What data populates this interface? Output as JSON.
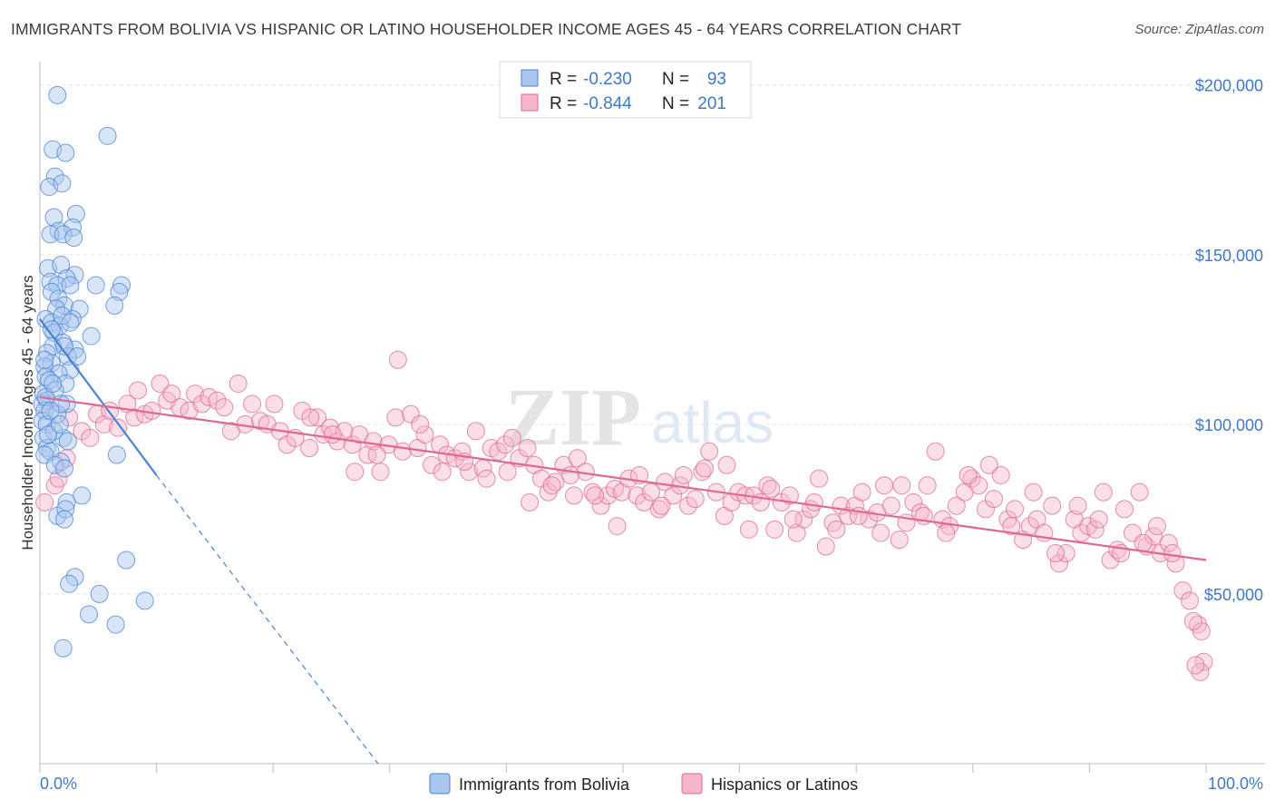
{
  "title": "IMMIGRANTS FROM BOLIVIA VS HISPANIC OR LATINO HOUSEHOLDER INCOME AGES 45 - 64 YEARS CORRELATION CHART",
  "source": "Source: ZipAtlas.com",
  "watermark": {
    "part1": "ZIP",
    "part2": "atlas"
  },
  "colors": {
    "blue": "#4a82d4",
    "blue_fill": "#a9c6ee",
    "pink": "#e0688f",
    "pink_fill": "#f5b6cb",
    "value_text": "#3f78c9"
  },
  "legend": {
    "rows": [
      {
        "r_label": "R =",
        "r_value": "-0.230",
        "n_label": "N =",
        "n_value": "93"
      },
      {
        "r_label": "R =",
        "r_value": "-0.844",
        "n_label": "N =",
        "n_value": "201"
      }
    ]
  },
  "bottom_legend": [
    "Immigrants from Bolivia",
    "Hispanics or Latinos"
  ],
  "chart_data": {
    "type": "scatter",
    "ylabel": "Householder Income Ages 45 - 64 years",
    "xlabel": "",
    "x_tick_labels": [
      "0.0%",
      "100.0%"
    ],
    "y_tick_labels": [
      "$50,000",
      "$100,000",
      "$150,000",
      "$200,000"
    ],
    "y_ticks": [
      50000,
      100000,
      150000,
      200000
    ],
    "xlim": [
      0,
      100
    ],
    "ylim": [
      0,
      205000
    ],
    "grid": true,
    "series": [
      {
        "name": "Immigrants from Bolivia",
        "color": "#4a82d4",
        "trend": {
          "x0": 0,
          "y0": 131000,
          "x1": 10,
          "y1": 85000,
          "dashed_to_x": 29,
          "dashed_to_y": 0
        },
        "points": [
          [
            1.5,
            197000
          ],
          [
            5.8,
            185000
          ],
          [
            1.1,
            181000
          ],
          [
            2.2,
            180000
          ],
          [
            1.3,
            173000
          ],
          [
            0.8,
            170000
          ],
          [
            1.9,
            171000
          ],
          [
            3.1,
            162000
          ],
          [
            1.2,
            161000
          ],
          [
            1.6,
            157000
          ],
          [
            2.8,
            158000
          ],
          [
            0.9,
            156000
          ],
          [
            2.0,
            156000
          ],
          [
            2.9,
            155000
          ],
          [
            0.7,
            146000
          ],
          [
            1.8,
            147000
          ],
          [
            3.0,
            144000
          ],
          [
            0.9,
            142000
          ],
          [
            2.3,
            143000
          ],
          [
            1.5,
            141000
          ],
          [
            2.6,
            141000
          ],
          [
            4.8,
            141000
          ],
          [
            7.0,
            141000
          ],
          [
            1.0,
            139000
          ],
          [
            1.6,
            137000
          ],
          [
            6.8,
            139000
          ],
          [
            2.1,
            135000
          ],
          [
            1.4,
            134000
          ],
          [
            3.4,
            134000
          ],
          [
            6.4,
            135000
          ],
          [
            0.5,
            131000
          ],
          [
            2.8,
            131000
          ],
          [
            1.0,
            130000
          ],
          [
            1.7,
            129000
          ],
          [
            1.2,
            127000
          ],
          [
            4.4,
            126000
          ],
          [
            2.0,
            124000
          ],
          [
            1.1,
            123000
          ],
          [
            3.0,
            122000
          ],
          [
            0.6,
            121000
          ],
          [
            2.4,
            120000
          ],
          [
            1.0,
            118000
          ],
          [
            0.4,
            117000
          ],
          [
            2.6,
            116000
          ],
          [
            1.6,
            115000
          ],
          [
            0.5,
            114000
          ],
          [
            0.8,
            113000
          ],
          [
            2.2,
            112000
          ],
          [
            0.3,
            109000
          ],
          [
            0.6,
            107000
          ],
          [
            0.2,
            106000
          ],
          [
            2.3,
            106000
          ],
          [
            0.4,
            104000
          ],
          [
            1.5,
            103000
          ],
          [
            0.2,
            101000
          ],
          [
            0.6,
            100000
          ],
          [
            0.3,
            96000
          ],
          [
            2.0,
            96000
          ],
          [
            0.6,
            93000
          ],
          [
            0.9,
            92000
          ],
          [
            0.4,
            91000
          ],
          [
            6.6,
            91000
          ],
          [
            1.8,
            89000
          ],
          [
            1.3,
            88000
          ],
          [
            2.1,
            87000
          ],
          [
            3.6,
            79000
          ],
          [
            2.3,
            77000
          ],
          [
            1.5,
            73000
          ],
          [
            2.2,
            75000
          ],
          [
            2.1,
            72000
          ],
          [
            7.4,
            60000
          ],
          [
            3.0,
            55000
          ],
          [
            2.5,
            53000
          ],
          [
            5.1,
            50000
          ],
          [
            9.0,
            48000
          ],
          [
            4.2,
            44000
          ],
          [
            6.5,
            41000
          ],
          [
            2.0,
            34000
          ],
          [
            2.1,
            123000
          ],
          [
            1.3,
            110000
          ],
          [
            0.5,
            108000
          ],
          [
            1.2,
            98000
          ],
          [
            0.7,
            97000
          ],
          [
            1.9,
            132000
          ],
          [
            1.0,
            128000
          ],
          [
            2.6,
            130000
          ],
          [
            0.4,
            119000
          ],
          [
            1.7,
            100000
          ],
          [
            3.2,
            120000
          ],
          [
            2.4,
            95000
          ],
          [
            1.1,
            112000
          ],
          [
            1.8,
            106000
          ],
          [
            0.9,
            104000
          ]
        ]
      },
      {
        "name": "Hispanics or Latinos",
        "color": "#e0688f",
        "trend": {
          "x0": 0,
          "y0": 108000,
          "x1": 100,
          "y1": 60000
        },
        "points": [
          [
            0.4,
            77000
          ],
          [
            1.3,
            82000
          ],
          [
            1.6,
            84000
          ],
          [
            2.3,
            90000
          ],
          [
            2.5,
            102000
          ],
          [
            3.6,
            98000
          ],
          [
            4.3,
            96000
          ],
          [
            4.9,
            103000
          ],
          [
            5.5,
            100000
          ],
          [
            6.0,
            104000
          ],
          [
            6.7,
            99000
          ],
          [
            7.5,
            106000
          ],
          [
            8.1,
            102000
          ],
          [
            8.4,
            110000
          ],
          [
            9.0,
            103000
          ],
          [
            9.6,
            104000
          ],
          [
            10.3,
            112000
          ],
          [
            10.9,
            107000
          ],
          [
            11.3,
            109000
          ],
          [
            12.0,
            105000
          ],
          [
            12.8,
            104000
          ],
          [
            13.3,
            109000
          ],
          [
            13.9,
            106000
          ],
          [
            14.5,
            108000
          ],
          [
            15.2,
            107000
          ],
          [
            15.8,
            105000
          ],
          [
            16.4,
            98000
          ],
          [
            17.0,
            112000
          ],
          [
            17.6,
            100000
          ],
          [
            18.2,
            106000
          ],
          [
            18.9,
            101000
          ],
          [
            19.5,
            100000
          ],
          [
            20.1,
            106000
          ],
          [
            20.6,
            98000
          ],
          [
            21.2,
            94000
          ],
          [
            21.9,
            96000
          ],
          [
            22.5,
            104000
          ],
          [
            23.1,
            93000
          ],
          [
            23.8,
            102000
          ],
          [
            24.3,
            97000
          ],
          [
            24.9,
            99000
          ],
          [
            25.5,
            95000
          ],
          [
            26.1,
            98000
          ],
          [
            26.8,
            94000
          ],
          [
            27.4,
            97000
          ],
          [
            28.1,
            91000
          ],
          [
            28.6,
            95000
          ],
          [
            29.2,
            86000
          ],
          [
            29.9,
            94000
          ],
          [
            30.5,
            102000
          ],
          [
            31.1,
            92000
          ],
          [
            31.8,
            103000
          ],
          [
            32.4,
            93000
          ],
          [
            33.0,
            97000
          ],
          [
            33.6,
            88000
          ],
          [
            34.3,
            94000
          ],
          [
            34.9,
            91000
          ],
          [
            35.6,
            90000
          ],
          [
            36.2,
            92000
          ],
          [
            36.8,
            86000
          ],
          [
            37.4,
            98000
          ],
          [
            38.0,
            87000
          ],
          [
            38.7,
            93000
          ],
          [
            39.3,
            92000
          ],
          [
            39.9,
            94000
          ],
          [
            40.5,
            96000
          ],
          [
            41.1,
            90000
          ],
          [
            41.8,
            93000
          ],
          [
            42.4,
            88000
          ],
          [
            43.0,
            84000
          ],
          [
            43.6,
            80000
          ],
          [
            44.2,
            83000
          ],
          [
            44.9,
            88000
          ],
          [
            45.5,
            85000
          ],
          [
            46.1,
            90000
          ],
          [
            46.8,
            86000
          ],
          [
            47.4,
            80000
          ],
          [
            48.1,
            76000
          ],
          [
            48.7,
            79000
          ],
          [
            49.3,
            81000
          ],
          [
            49.9,
            80000
          ],
          [
            50.5,
            84000
          ],
          [
            51.2,
            79000
          ],
          [
            51.8,
            77000
          ],
          [
            52.4,
            80000
          ],
          [
            53.1,
            75000
          ],
          [
            53.6,
            83000
          ],
          [
            54.3,
            79000
          ],
          [
            54.9,
            82000
          ],
          [
            55.6,
            76000
          ],
          [
            56.2,
            78000
          ],
          [
            56.8,
            86000
          ],
          [
            57.4,
            92000
          ],
          [
            58.0,
            80000
          ],
          [
            58.7,
            73000
          ],
          [
            59.3,
            77000
          ],
          [
            59.9,
            80000
          ],
          [
            60.5,
            79000
          ],
          [
            61.2,
            79000
          ],
          [
            61.8,
            77000
          ],
          [
            62.4,
            82000
          ],
          [
            63.0,
            69000
          ],
          [
            63.6,
            77000
          ],
          [
            64.3,
            79000
          ],
          [
            64.9,
            68000
          ],
          [
            65.5,
            72000
          ],
          [
            66.1,
            75000
          ],
          [
            66.8,
            84000
          ],
          [
            67.4,
            64000
          ],
          [
            68.0,
            71000
          ],
          [
            68.7,
            76000
          ],
          [
            69.3,
            73000
          ],
          [
            69.9,
            76000
          ],
          [
            70.5,
            80000
          ],
          [
            71.1,
            72000
          ],
          [
            71.8,
            74000
          ],
          [
            72.4,
            82000
          ],
          [
            73.0,
            76000
          ],
          [
            73.7,
            66000
          ],
          [
            74.3,
            71000
          ],
          [
            74.9,
            77000
          ],
          [
            75.5,
            74000
          ],
          [
            76.1,
            82000
          ],
          [
            76.8,
            92000
          ],
          [
            77.4,
            72000
          ],
          [
            78.0,
            70000
          ],
          [
            78.6,
            76000
          ],
          [
            79.3,
            80000
          ],
          [
            79.9,
            84000
          ],
          [
            80.5,
            82000
          ],
          [
            81.1,
            75000
          ],
          [
            81.8,
            78000
          ],
          [
            82.4,
            85000
          ],
          [
            83.0,
            72000
          ],
          [
            83.6,
            75000
          ],
          [
            84.3,
            66000
          ],
          [
            84.9,
            70000
          ],
          [
            85.5,
            72000
          ],
          [
            86.1,
            68000
          ],
          [
            86.8,
            76000
          ],
          [
            87.4,
            59000
          ],
          [
            88.0,
            62000
          ],
          [
            88.7,
            72000
          ],
          [
            89.3,
            68000
          ],
          [
            89.9,
            70000
          ],
          [
            90.5,
            69000
          ],
          [
            91.2,
            80000
          ],
          [
            91.8,
            60000
          ],
          [
            92.4,
            63000
          ],
          [
            93.0,
            75000
          ],
          [
            93.7,
            68000
          ],
          [
            94.3,
            80000
          ],
          [
            94.9,
            64000
          ],
          [
            95.5,
            67000
          ],
          [
            96.1,
            62000
          ],
          [
            96.8,
            65000
          ],
          [
            97.4,
            59000
          ],
          [
            98.0,
            51000
          ],
          [
            98.6,
            48000
          ],
          [
            99.3,
            41000
          ],
          [
            99.6,
            39000
          ],
          [
            98.9,
            42000
          ],
          [
            99.8,
            30000
          ],
          [
            99.5,
            27000
          ],
          [
            99.1,
            29000
          ],
          [
            97.1,
            62000
          ],
          [
            95.8,
            70000
          ],
          [
            94.6,
            65000
          ],
          [
            92.7,
            62000
          ],
          [
            90.8,
            72000
          ],
          [
            89.0,
            76000
          ],
          [
            87.1,
            62000
          ],
          [
            85.2,
            80000
          ],
          [
            83.3,
            70000
          ],
          [
            81.4,
            88000
          ],
          [
            79.6,
            85000
          ],
          [
            77.7,
            68000
          ],
          [
            75.8,
            73000
          ],
          [
            73.9,
            82000
          ],
          [
            72.1,
            68000
          ],
          [
            70.2,
            73000
          ],
          [
            68.3,
            69000
          ],
          [
            66.4,
            77000
          ],
          [
            64.6,
            72000
          ],
          [
            62.7,
            81000
          ],
          [
            60.8,
            69000
          ],
          [
            58.9,
            88000
          ],
          [
            57.0,
            87000
          ],
          [
            55.2,
            85000
          ],
          [
            53.3,
            76000
          ],
          [
            51.4,
            85000
          ],
          [
            49.5,
            70000
          ],
          [
            47.6,
            79000
          ],
          [
            45.8,
            79000
          ],
          [
            43.9,
            82000
          ],
          [
            42.0,
            77000
          ],
          [
            40.1,
            86000
          ],
          [
            38.3,
            84000
          ],
          [
            36.4,
            89000
          ],
          [
            34.5,
            86000
          ],
          [
            32.6,
            100000
          ],
          [
            30.7,
            119000
          ],
          [
            28.9,
            91000
          ],
          [
            27.0,
            86000
          ],
          [
            25.1,
            97000
          ],
          [
            23.2,
            102000
          ]
        ]
      }
    ]
  }
}
